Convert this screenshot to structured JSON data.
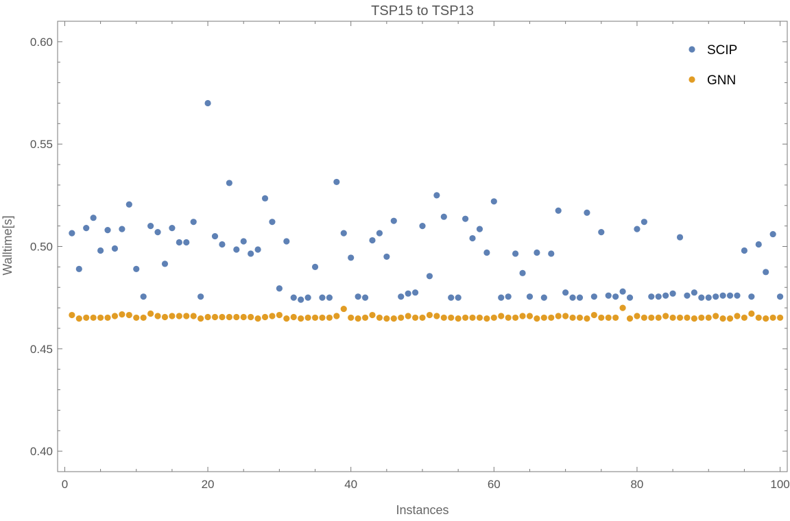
{
  "chart_data": {
    "type": "scatter",
    "title": "TSP15 to TSP13",
    "xlabel": "Instances",
    "ylabel": "Walltime[s]",
    "xlim": [
      -1,
      101
    ],
    "ylim": [
      0.39,
      0.61
    ],
    "x_ticks": [
      0,
      20,
      40,
      60,
      80,
      100
    ],
    "x_tick_labels": [
      "0",
      "20",
      "40",
      "60",
      "80",
      "100"
    ],
    "y_ticks": [
      0.4,
      0.45,
      0.5,
      0.55,
      0.6
    ],
    "y_tick_labels": [
      "0.40",
      "0.45",
      "0.50",
      "0.55",
      "0.60"
    ],
    "legend_position": "top-right",
    "grid": false,
    "series": [
      {
        "name": "SCIP",
        "color": "#5e81b5",
        "x": [
          1,
          2,
          3,
          4,
          5,
          6,
          7,
          8,
          9,
          10,
          11,
          12,
          13,
          14,
          15,
          16,
          17,
          18,
          19,
          20,
          21,
          22,
          23,
          24,
          25,
          26,
          27,
          28,
          29,
          30,
          31,
          32,
          33,
          34,
          35,
          36,
          37,
          38,
          39,
          40,
          41,
          42,
          43,
          44,
          45,
          46,
          47,
          48,
          49,
          50,
          51,
          52,
          53,
          54,
          55,
          56,
          57,
          58,
          59,
          60,
          61,
          62,
          63,
          64,
          65,
          66,
          67,
          68,
          69,
          70,
          71,
          72,
          73,
          74,
          75,
          76,
          77,
          78,
          79,
          80,
          81,
          82,
          83,
          84,
          85,
          86,
          87,
          88,
          89,
          90,
          91,
          92,
          93,
          94,
          95,
          96,
          97,
          98,
          99,
          100
        ],
        "y": [
          0.5065,
          0.489,
          0.509,
          0.514,
          0.498,
          0.508,
          0.499,
          0.5085,
          0.5205,
          0.489,
          0.4755,
          0.51,
          0.507,
          0.4915,
          0.509,
          0.502,
          0.502,
          0.512,
          0.4755,
          0.57,
          0.505,
          0.501,
          0.531,
          0.4985,
          0.5025,
          0.4965,
          0.4985,
          0.5235,
          0.512,
          0.4795,
          0.5025,
          0.475,
          0.474,
          0.475,
          0.49,
          0.475,
          0.475,
          0.5315,
          0.5065,
          0.4945,
          0.4755,
          0.475,
          0.503,
          0.5065,
          0.495,
          0.5125,
          0.4755,
          0.477,
          0.4775,
          0.51,
          0.4855,
          0.525,
          0.5145,
          0.475,
          0.475,
          0.5135,
          0.504,
          0.5085,
          0.497,
          0.522,
          0.475,
          0.4755,
          0.4965,
          0.487,
          0.4755,
          0.497,
          0.475,
          0.4965,
          0.5175,
          0.4775,
          0.475,
          0.475,
          0.5165,
          0.4755,
          0.507,
          0.476,
          0.4755,
          0.478,
          0.475,
          0.5085,
          0.512,
          0.4755,
          0.4755,
          0.476,
          0.477,
          0.5045,
          0.476,
          0.4775,
          0.475,
          0.475,
          0.4755,
          0.476,
          0.476,
          0.476,
          0.498,
          0.4755,
          0.501,
          0.4875,
          0.506,
          0.4755
        ]
      },
      {
        "name": "GNN",
        "color": "#e19c24",
        "x": [
          1,
          2,
          3,
          4,
          5,
          6,
          7,
          8,
          9,
          10,
          11,
          12,
          13,
          14,
          15,
          16,
          17,
          18,
          19,
          20,
          21,
          22,
          23,
          24,
          25,
          26,
          27,
          28,
          29,
          30,
          31,
          32,
          33,
          34,
          35,
          36,
          37,
          38,
          39,
          40,
          41,
          42,
          43,
          44,
          45,
          46,
          47,
          48,
          49,
          50,
          51,
          52,
          53,
          54,
          55,
          56,
          57,
          58,
          59,
          60,
          61,
          62,
          63,
          64,
          65,
          66,
          67,
          68,
          69,
          70,
          71,
          72,
          73,
          74,
          75,
          76,
          77,
          78,
          79,
          80,
          81,
          82,
          83,
          84,
          85,
          86,
          87,
          88,
          89,
          90,
          91,
          92,
          93,
          94,
          95,
          96,
          97,
          98,
          99,
          100
        ],
        "y": [
          0.4665,
          0.4648,
          0.4652,
          0.4652,
          0.4652,
          0.4652,
          0.466,
          0.4668,
          0.4665,
          0.4652,
          0.4652,
          0.4672,
          0.466,
          0.4655,
          0.466,
          0.466,
          0.466,
          0.466,
          0.4648,
          0.4655,
          0.4655,
          0.4655,
          0.4655,
          0.4655,
          0.4655,
          0.4655,
          0.4648,
          0.4655,
          0.466,
          0.4665,
          0.4648,
          0.4655,
          0.4648,
          0.4652,
          0.4652,
          0.4652,
          0.4652,
          0.466,
          0.4695,
          0.4652,
          0.4648,
          0.4652,
          0.4665,
          0.4652,
          0.4648,
          0.4648,
          0.4652,
          0.466,
          0.4652,
          0.4652,
          0.4665,
          0.466,
          0.4652,
          0.4652,
          0.4648,
          0.4652,
          0.4652,
          0.4652,
          0.4648,
          0.4652,
          0.466,
          0.4652,
          0.4652,
          0.466,
          0.466,
          0.4648,
          0.4652,
          0.4652,
          0.466,
          0.466,
          0.4652,
          0.4652,
          0.4648,
          0.4665,
          0.4652,
          0.4652,
          0.4652,
          0.47,
          0.4648,
          0.466,
          0.4652,
          0.4652,
          0.4652,
          0.466,
          0.4652,
          0.4652,
          0.4652,
          0.4648,
          0.4652,
          0.4652,
          0.466,
          0.4648,
          0.4648,
          0.466,
          0.4652,
          0.4672,
          0.4652,
          0.4648,
          0.4652,
          0.4652
        ]
      }
    ]
  }
}
